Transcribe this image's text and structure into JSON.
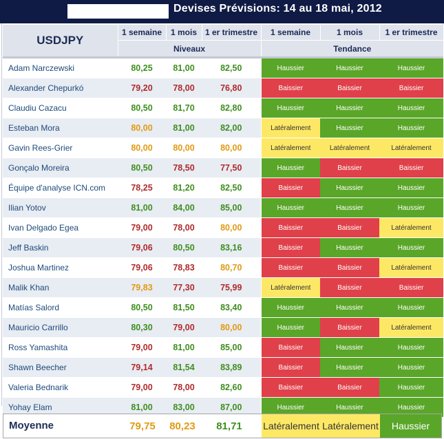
{
  "header": {
    "title": "Devises Prévisions: 14 au 18 mai, 2012"
  },
  "table": {
    "pair": "USDJPY",
    "periods": [
      "1 semaine",
      "1 mois",
      "1 er trimestre"
    ],
    "group_levels": "Niveaux",
    "group_trend": "Tendance",
    "colors": {
      "haussier_bg": "#5aa629",
      "baissier_bg": "#e0404a",
      "lateral_bg": "#fde866",
      "value_green": "#3e8e1f",
      "value_red": "#b02a2a",
      "value_orange": "#e09a13",
      "banner_bg": "#0f1b45"
    },
    "rows": [
      {
        "name": "Adam Narczewski",
        "levels": [
          "80,25",
          "81,00",
          "82,50"
        ],
        "trends": [
          "Haussier",
          "Haussier",
          "Haussier"
        ]
      },
      {
        "name": "Alexander Chepurkó",
        "levels": [
          "79,20",
          "78,00",
          "76,80"
        ],
        "trends": [
          "Baissier",
          "Baissier",
          "Baissier"
        ]
      },
      {
        "name": "Claudiu Cazacu",
        "levels": [
          "80,50",
          "81,70",
          "82,80"
        ],
        "trends": [
          "Haussier",
          "Haussier",
          "Haussier"
        ]
      },
      {
        "name": "Esteban Mora",
        "levels": [
          "80,00",
          "81,00",
          "82,00"
        ],
        "trends": [
          "Latéralement",
          "Haussier",
          "Haussier"
        ]
      },
      {
        "name": "Gavin Rees-Grier",
        "levels": [
          "80,00",
          "80,00",
          "80,00"
        ],
        "trends": [
          "Latéralement",
          "Latéralement",
          "Latéralement"
        ]
      },
      {
        "name": "Gonçalo Moreira",
        "levels": [
          "80,50",
          "78,50",
          "77,50"
        ],
        "trends": [
          "Haussier",
          "Baissier",
          "Baissier"
        ]
      },
      {
        "name": "Équipe d'analyse ICN.com",
        "levels": [
          "78,25",
          "81,20",
          "82,50"
        ],
        "trends": [
          "Baissier",
          "Haussier",
          "Haussier"
        ]
      },
      {
        "name": "Ilian Yotov",
        "levels": [
          "81,00",
          "84,00",
          "85,00"
        ],
        "trends": [
          "Haussier",
          "Haussier",
          "Haussier"
        ]
      },
      {
        "name": "Ivan Delgado Egea",
        "levels": [
          "79,00",
          "78,00",
          "80,00"
        ],
        "trends": [
          "Baissier",
          "Baissier",
          "Latéralement"
        ]
      },
      {
        "name": "Jeff Baskin",
        "levels": [
          "79,06",
          "80,50",
          "83,16"
        ],
        "trends": [
          "Baissier",
          "Haussier",
          "Haussier"
        ]
      },
      {
        "name": "Joshua Martinez",
        "levels": [
          "79,06",
          "78,83",
          "80,70"
        ],
        "trends": [
          "Baissier",
          "Baissier",
          "Latéralement"
        ]
      },
      {
        "name": "Malik Khan",
        "levels": [
          "79,83",
          "77,30",
          "75,99"
        ],
        "trends": [
          "Latéralement",
          "Baissier",
          "Baissier"
        ]
      },
      {
        "name": "Matías Salord",
        "levels": [
          "80,50",
          "81,50",
          "83,40"
        ],
        "trends": [
          "Haussier",
          "Haussier",
          "Haussier"
        ]
      },
      {
        "name": "Mauricio Carrillo",
        "levels": [
          "80,30",
          "79,00",
          "80,00"
        ],
        "trends": [
          "Haussier",
          "Baissier",
          "Latéralement"
        ]
      },
      {
        "name": "Ross Yamashita",
        "levels": [
          "79,00",
          "81,00",
          "85,00"
        ],
        "trends": [
          "Baissier",
          "Haussier",
          "Haussier"
        ]
      },
      {
        "name": "Shawn Beecher",
        "levels": [
          "79,14",
          "81,54",
          "83,89"
        ],
        "trends": [
          "Baissier",
          "Haussier",
          "Haussier"
        ]
      },
      {
        "name": "Valeria Bednarik",
        "levels": [
          "79,00",
          "78,00",
          "82,60"
        ],
        "trends": [
          "Baissier",
          "Baissier",
          "Haussier"
        ]
      },
      {
        "name": "Yohay Elam",
        "levels": [
          "81,00",
          "83,00",
          "87,00"
        ],
        "trends": [
          "Haussier",
          "Haussier",
          "Haussier"
        ]
      }
    ],
    "average": {
      "label": "Moyenne",
      "levels": [
        "79,75",
        "80,23",
        "81,71"
      ],
      "trends": [
        "Latéralement",
        "Latéralement",
        "Haussier"
      ]
    }
  }
}
